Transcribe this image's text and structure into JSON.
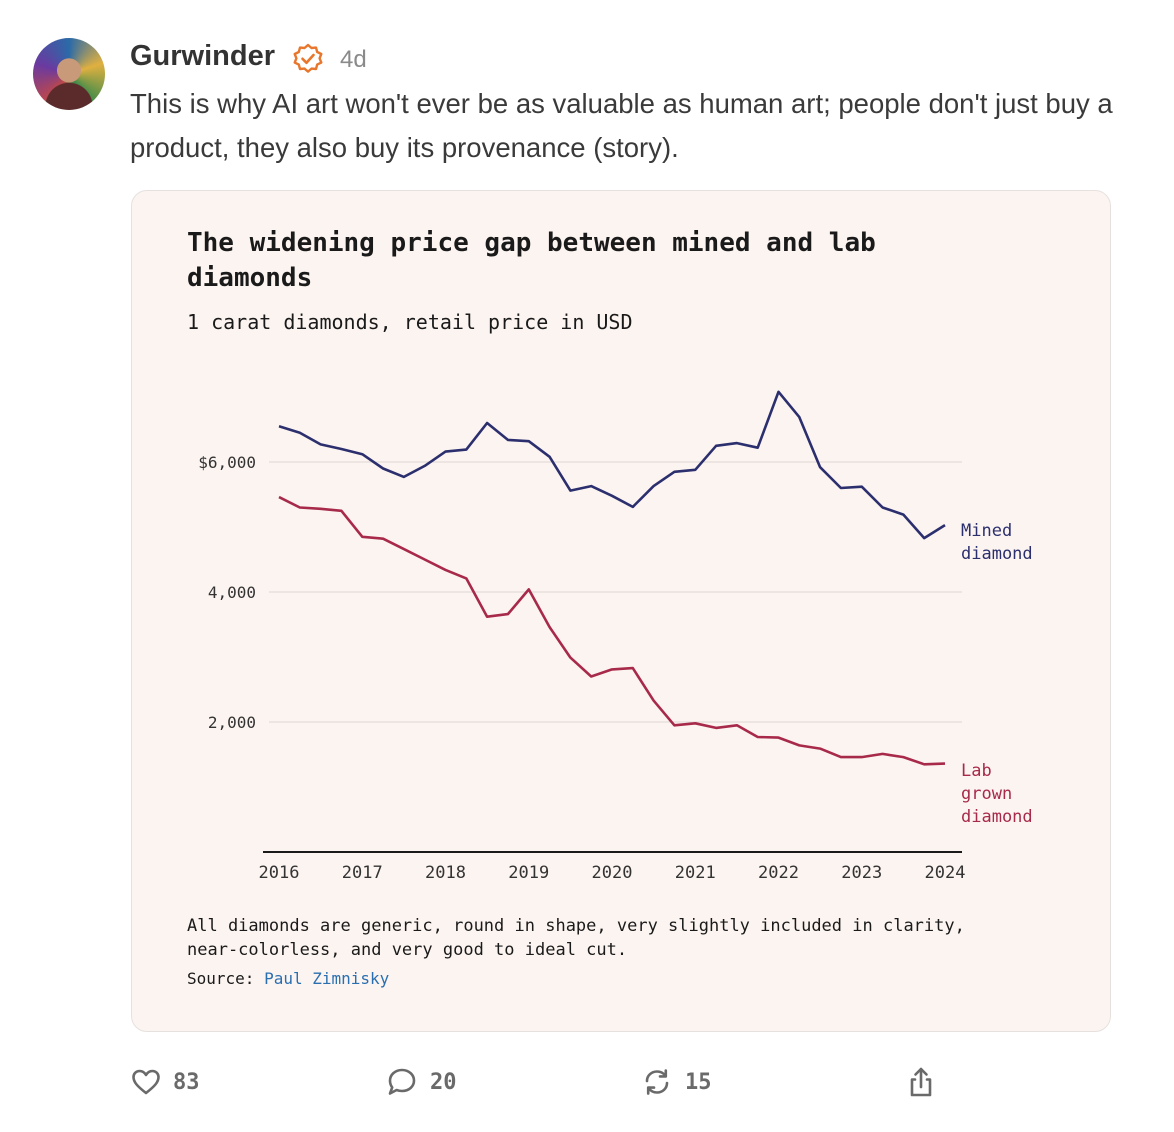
{
  "post": {
    "author": "Gurwinder",
    "time": "4d",
    "text": "This is why AI art won't ever be as valuable as human art; people don't just buy a product, they also buy its provenance (story)."
  },
  "chart_data": {
    "type": "line",
    "title": "The widening price gap between mined and lab diamonds",
    "subtitle": "1 carat diamonds, retail price in USD",
    "x_ticks": [
      "2016",
      "2017",
      "2018",
      "2019",
      "2020",
      "2021",
      "2022",
      "2023",
      "2024"
    ],
    "y_ticks": [
      {
        "value": 2000,
        "label": "2,000"
      },
      {
        "value": 4000,
        "label": "4,000"
      },
      {
        "value": 6000,
        "label": "$6,000"
      }
    ],
    "xlim": [
      2016,
      2024
    ],
    "ylim": [
      0,
      7000
    ],
    "grid": "horizontal",
    "series": [
      {
        "name": "Mined diamond",
        "label_lines": [
          "Mined",
          "diamond"
        ],
        "color": "#2c2f6e",
        "x": [
          2016.0,
          2016.25,
          2016.5,
          2016.75,
          2017.0,
          2017.25,
          2017.5,
          2017.75,
          2018.0,
          2018.25,
          2018.5,
          2018.75,
          2019.0,
          2019.25,
          2019.5,
          2019.75,
          2020.0,
          2020.25,
          2020.5,
          2020.75,
          2021.0,
          2021.25,
          2021.5,
          2021.75,
          2022.0,
          2022.25,
          2022.5,
          2022.75,
          2023.0,
          2023.25,
          2023.5,
          2023.75,
          2024.0
        ],
        "y": [
          6550,
          6450,
          6270,
          6200,
          6120,
          5900,
          5770,
          5940,
          6160,
          6190,
          6600,
          6340,
          6320,
          6080,
          5560,
          5630,
          5480,
          5310,
          5630,
          5850,
          5880,
          6250,
          6290,
          6220,
          7080,
          6690,
          5920,
          5600,
          5620,
          5300,
          5190,
          4830,
          5030
        ]
      },
      {
        "name": "Lab grown diamond",
        "label_lines": [
          "Lab",
          "grown",
          "diamond"
        ],
        "color": "#a82a4a",
        "x": [
          2016.0,
          2016.25,
          2016.5,
          2016.75,
          2017.0,
          2017.25,
          2017.5,
          2017.75,
          2018.0,
          2018.25,
          2018.5,
          2018.75,
          2019.0,
          2019.25,
          2019.5,
          2019.75,
          2020.0,
          2020.25,
          2020.5,
          2020.75,
          2021.0,
          2021.25,
          2021.5,
          2021.75,
          2022.0,
          2022.25,
          2022.5,
          2022.75,
          2023.0,
          2023.25,
          2023.5,
          2023.75,
          2024.0
        ],
        "y": [
          5460,
          5300,
          5280,
          5250,
          4850,
          4820,
          4660,
          4500,
          4340,
          4210,
          3620,
          3660,
          4040,
          3460,
          2990,
          2700,
          2810,
          2830,
          2330,
          1950,
          1980,
          1910,
          1950,
          1770,
          1760,
          1640,
          1590,
          1460,
          1460,
          1510,
          1460,
          1350,
          1360
        ]
      }
    ],
    "note": "All diamonds are generic, round in shape, very slightly included in clarity, near-colorless, and very good to ideal cut.",
    "source_label": "Source:",
    "source_name": "Paul Zimnisky"
  },
  "actions": {
    "likes": "83",
    "comments": "20",
    "restacks": "15"
  },
  "colors": {
    "verified_badge": "#e8762c",
    "card_background": "#fcf4f1",
    "link": "#2a6fb0"
  },
  "icons": [
    "verified-icon",
    "heart-icon",
    "comment-icon",
    "restack-icon",
    "share-icon"
  ]
}
